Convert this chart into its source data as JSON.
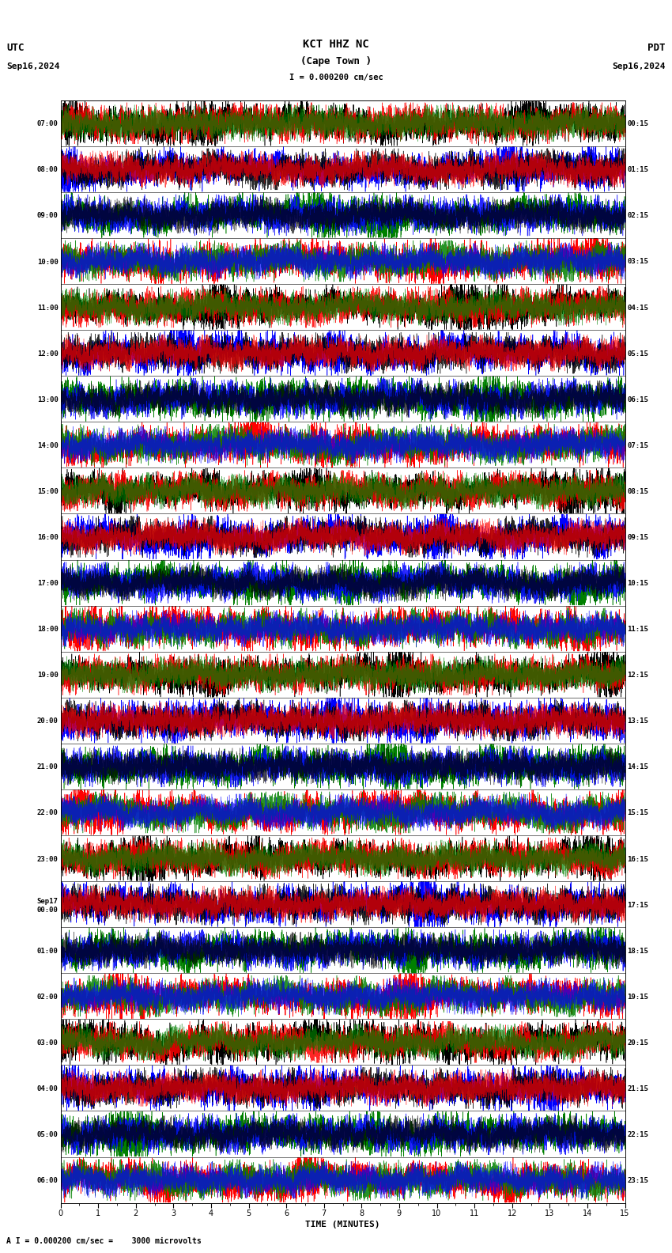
{
  "title_center": "KCT HHZ NC",
  "title_sub": "(Cape Town )",
  "scale_text": "I = 0.000200 cm/sec",
  "utc_label": "UTC",
  "pdt_label": "PDT",
  "date_left": "Sep16,2024",
  "date_right": "Sep16,2024",
  "bottom_note": "A I = 0.000200 cm/sec =    3000 microvolts",
  "xlabel": "TIME (MINUTES)",
  "time_labels_left": [
    "07:00",
    "08:00",
    "09:00",
    "10:00",
    "11:00",
    "12:00",
    "13:00",
    "14:00",
    "15:00",
    "16:00",
    "17:00",
    "18:00",
    "19:00",
    "20:00",
    "21:00",
    "22:00",
    "23:00",
    "Sep17\n00:00",
    "01:00",
    "02:00",
    "03:00",
    "04:00",
    "05:00",
    "06:00"
  ],
  "time_labels_right": [
    "00:15",
    "01:15",
    "02:15",
    "03:15",
    "04:15",
    "05:15",
    "06:15",
    "07:15",
    "08:15",
    "09:15",
    "10:15",
    "11:15",
    "12:15",
    "13:15",
    "14:15",
    "15:15",
    "16:15",
    "17:15",
    "18:15",
    "19:15",
    "20:15",
    "21:15",
    "22:15",
    "23:15"
  ],
  "num_traces": 24,
  "num_minutes": 15,
  "background_color": "#ffffff",
  "trace_colors": [
    "#ff0000",
    "#008000",
    "#0000ff",
    "#000000"
  ],
  "row_color_pattern": [
    0,
    1,
    2,
    3
  ],
  "fig_width": 8.5,
  "fig_height": 15.84,
  "dpi": 100
}
